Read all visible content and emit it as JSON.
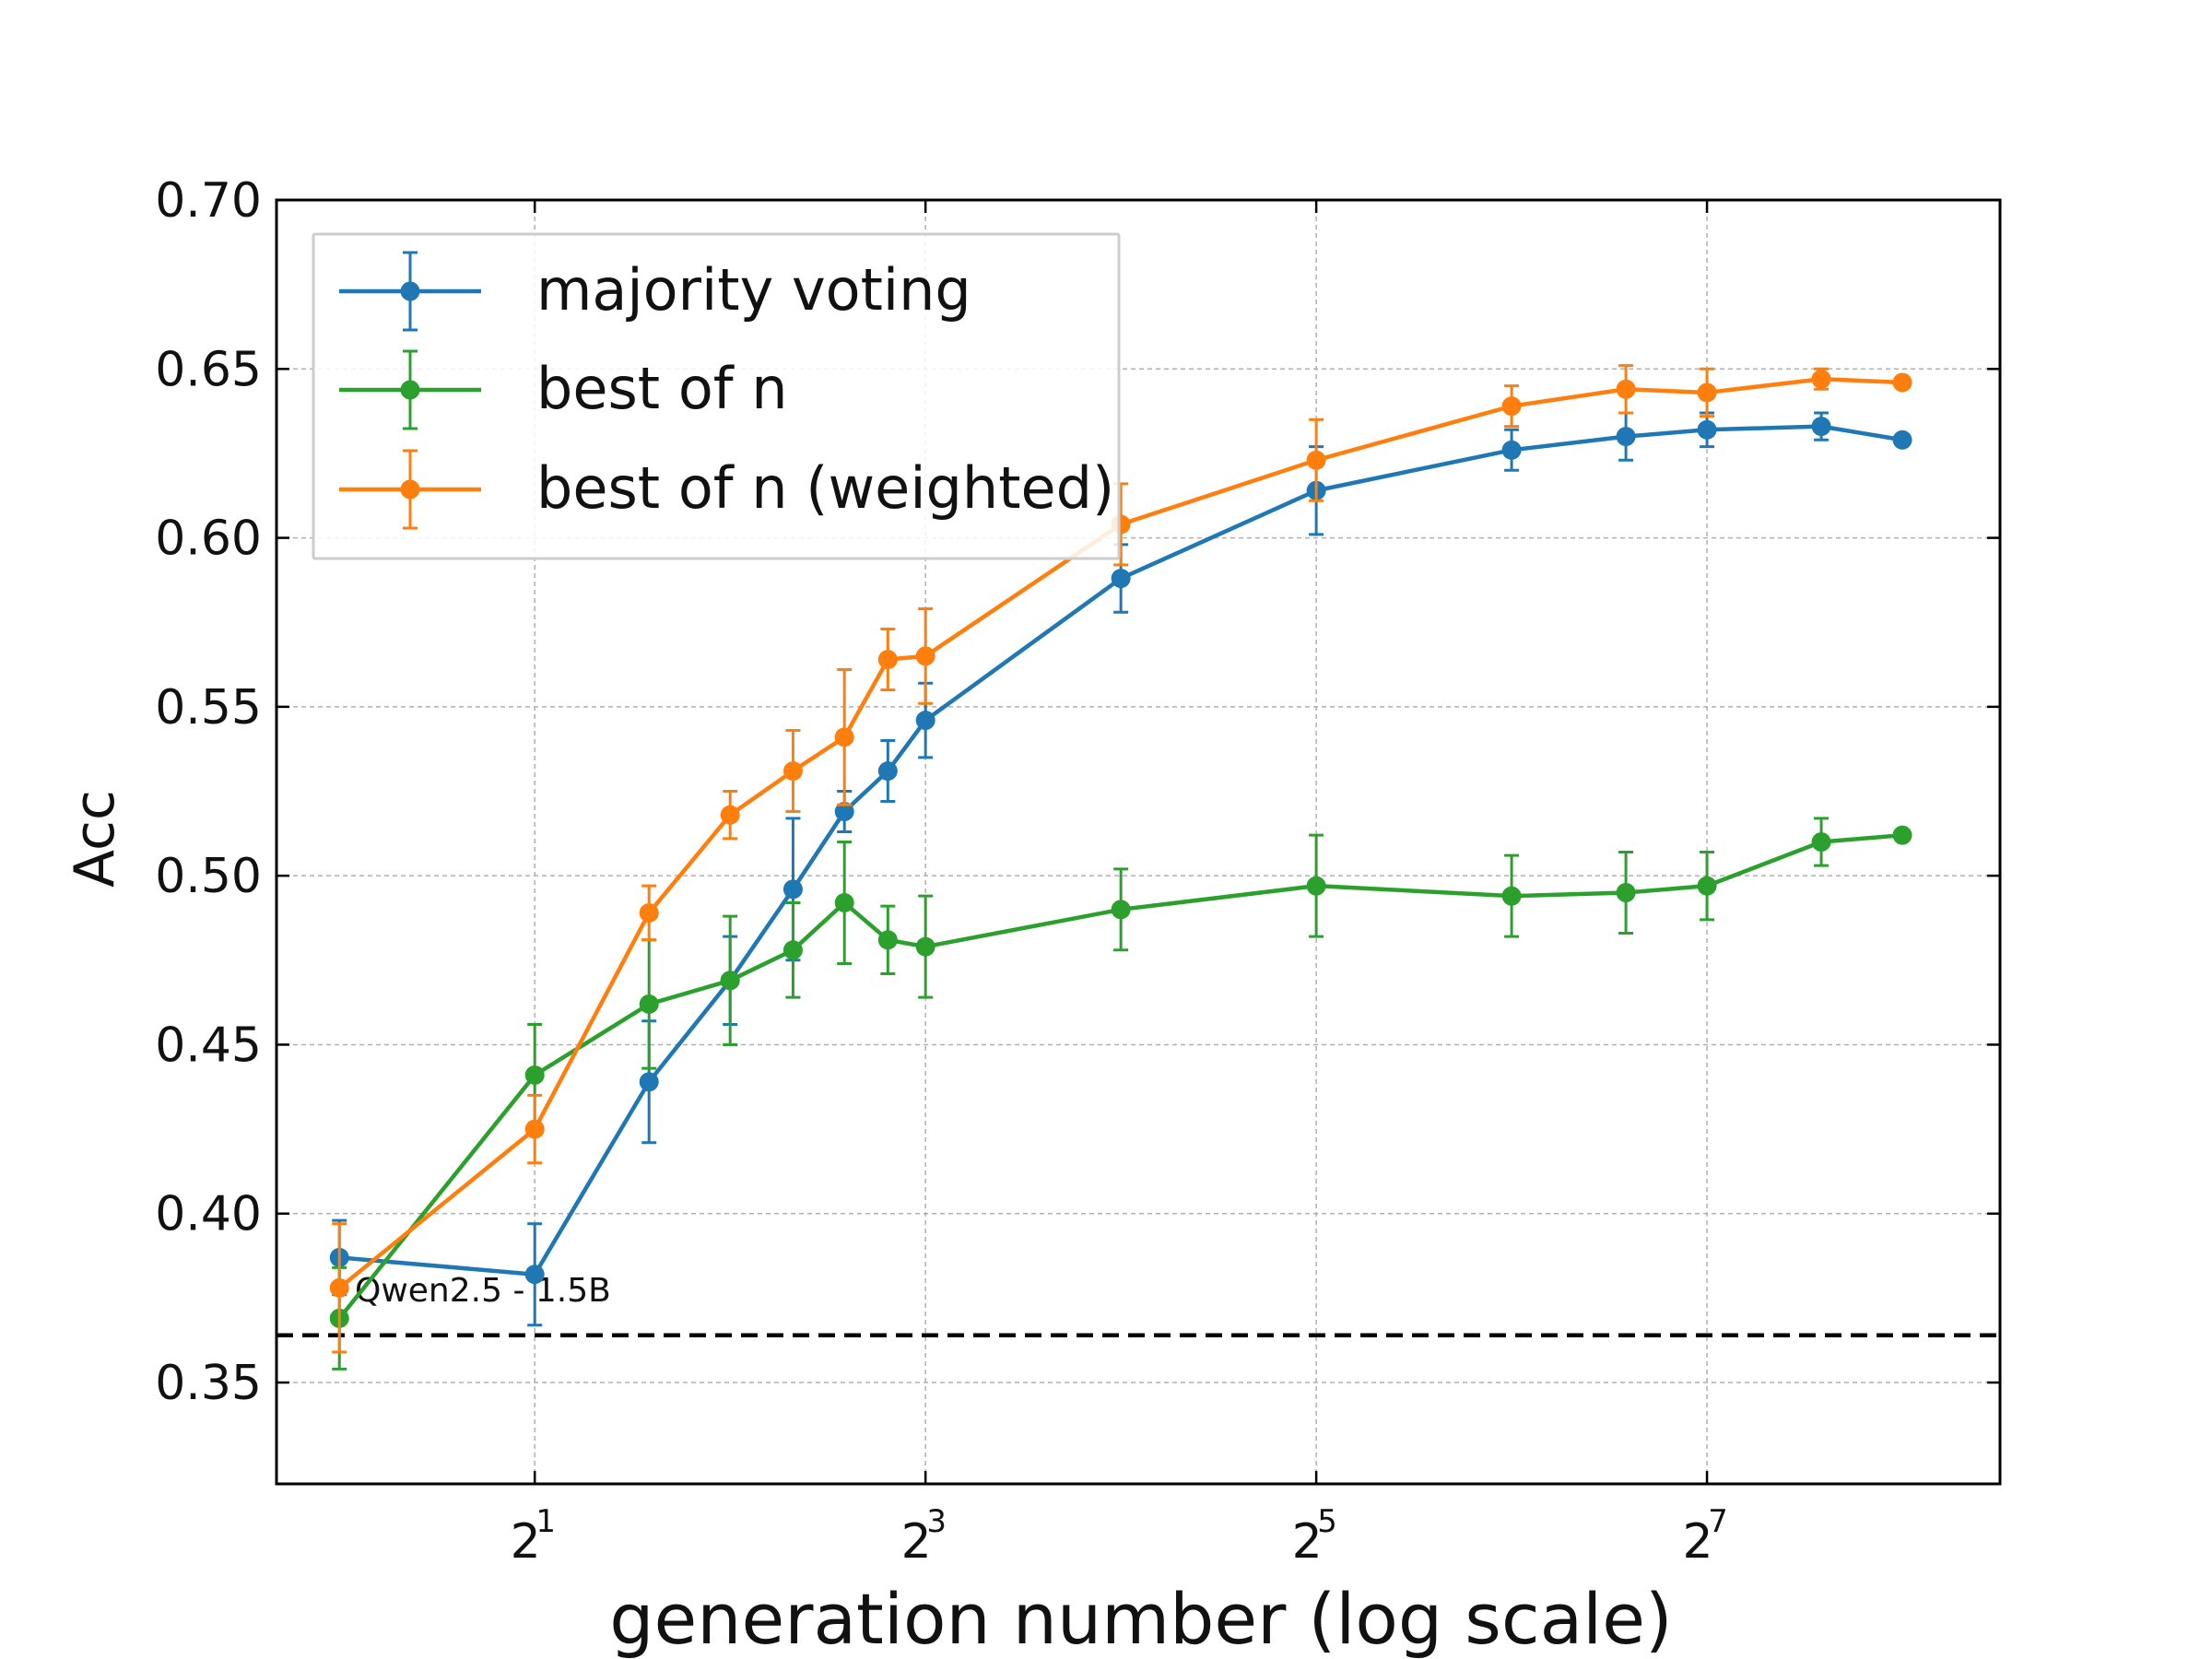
{
  "chart_data": {
    "type": "line",
    "xlabel": "generation number (log scale)",
    "ylabel": "Acc",
    "x_scale": "log2",
    "xlim": [
      0.8,
      362
    ],
    "ylim": [
      0.32,
      0.7
    ],
    "x_ticks": [
      {
        "value": 2,
        "base": "2",
        "exp": "1"
      },
      {
        "value": 8,
        "base": "2",
        "exp": "3"
      },
      {
        "value": 32,
        "base": "2",
        "exp": "5"
      },
      {
        "value": 128,
        "base": "2",
        "exp": "7"
      }
    ],
    "y_ticks": [
      "0.35",
      "0.40",
      "0.45",
      "0.50",
      "0.55",
      "0.60",
      "0.65",
      "0.70"
    ],
    "grid": true,
    "legend_position": "top-left",
    "series": [
      {
        "name": "majority voting",
        "color": "#1f77b4",
        "points": [
          {
            "x": 1,
            "y": 0.387,
            "err": 0.011
          },
          {
            "x": 2,
            "y": 0.382,
            "err": 0.015
          },
          {
            "x": 3,
            "y": 0.439,
            "err": 0.018
          },
          {
            "x": 4,
            "y": 0.469,
            "err": 0.013
          },
          {
            "x": 5,
            "y": 0.496,
            "err": 0.021
          },
          {
            "x": 6,
            "y": 0.519,
            "err": 0.006
          },
          {
            "x": 7,
            "y": 0.531,
            "err": 0.009
          },
          {
            "x": 8,
            "y": 0.546,
            "err": 0.011
          },
          {
            "x": 16,
            "y": 0.588,
            "err": 0.01
          },
          {
            "x": 32,
            "y": 0.614,
            "err": 0.013
          },
          {
            "x": 64,
            "y": 0.626,
            "err": 0.006
          },
          {
            "x": 96,
            "y": 0.63,
            "err": 0.007
          },
          {
            "x": 128,
            "y": 0.632,
            "err": 0.005
          },
          {
            "x": 192,
            "y": 0.633,
            "err": 0.004
          },
          {
            "x": 256,
            "y": 0.629,
            "err": 0.0
          }
        ]
      },
      {
        "name": "best of n",
        "color": "#2ca02c",
        "points": [
          {
            "x": 1,
            "y": 0.369,
            "err": 0.015
          },
          {
            "x": 2,
            "y": 0.441,
            "err": 0.015
          },
          {
            "x": 3,
            "y": 0.462,
            "err": 0.019
          },
          {
            "x": 4,
            "y": 0.469,
            "err": 0.019
          },
          {
            "x": 5,
            "y": 0.478,
            "err": 0.014
          },
          {
            "x": 6,
            "y": 0.492,
            "err": 0.018
          },
          {
            "x": 7,
            "y": 0.481,
            "err": 0.01
          },
          {
            "x": 8,
            "y": 0.479,
            "err": 0.015
          },
          {
            "x": 16,
            "y": 0.49,
            "err": 0.012
          },
          {
            "x": 32,
            "y": 0.497,
            "err": 0.015
          },
          {
            "x": 64,
            "y": 0.494,
            "err": 0.012
          },
          {
            "x": 96,
            "y": 0.495,
            "err": 0.012
          },
          {
            "x": 128,
            "y": 0.497,
            "err": 0.01
          },
          {
            "x": 192,
            "y": 0.51,
            "err": 0.007
          },
          {
            "x": 256,
            "y": 0.512,
            "err": 0.0
          }
        ]
      },
      {
        "name": "best of n (weighted)",
        "color": "#ff7f0e",
        "points": [
          {
            "x": 1,
            "y": 0.378,
            "err": 0.019
          },
          {
            "x": 2,
            "y": 0.425,
            "err": 0.01
          },
          {
            "x": 3,
            "y": 0.489,
            "err": 0.008
          },
          {
            "x": 4,
            "y": 0.518,
            "err": 0.007
          },
          {
            "x": 5,
            "y": 0.531,
            "err": 0.012
          },
          {
            "x": 6,
            "y": 0.541,
            "err": 0.02
          },
          {
            "x": 7,
            "y": 0.564,
            "err": 0.009
          },
          {
            "x": 8,
            "y": 0.565,
            "err": 0.014
          },
          {
            "x": 16,
            "y": 0.604,
            "err": 0.012
          },
          {
            "x": 32,
            "y": 0.623,
            "err": 0.012
          },
          {
            "x": 64,
            "y": 0.639,
            "err": 0.006
          },
          {
            "x": 96,
            "y": 0.644,
            "err": 0.007
          },
          {
            "x": 128,
            "y": 0.643,
            "err": 0.007
          },
          {
            "x": 192,
            "y": 0.647,
            "err": 0.003
          },
          {
            "x": 256,
            "y": 0.646,
            "err": 0.0
          }
        ]
      }
    ],
    "reference_line": {
      "y": 0.364,
      "label": "Qwen2.5 - 1.5B",
      "style": "dashed",
      "color": "#000000"
    }
  }
}
